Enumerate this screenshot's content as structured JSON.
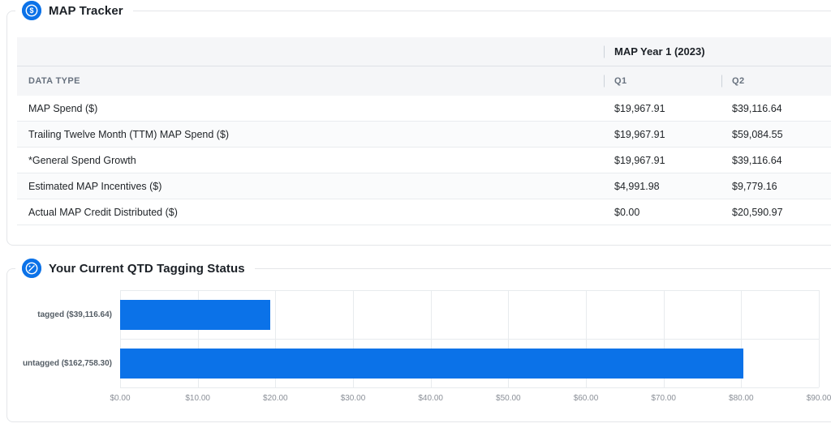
{
  "map_tracker": {
    "title": "MAP Tracker",
    "table": {
      "year_header": "MAP Year 1 (2023)",
      "data_type_header": "DATA TYPE",
      "quarter_headers": {
        "q1": "Q1",
        "q2": "Q2"
      },
      "rows": [
        {
          "label": "MAP Spend ($)",
          "q1": "$19,967.91",
          "q2": "$39,116.64"
        },
        {
          "label": "Trailing Twelve Month (TTM) MAP Spend ($)",
          "q1": "$19,967.91",
          "q2": "$59,084.55"
        },
        {
          "label": "*General Spend Growth",
          "q1": "$19,967.91",
          "q2": "$39,116.64"
        },
        {
          "label": "Estimated MAP Incentives ($)",
          "q1": "$4,991.98",
          "q2": "$9,779.16"
        },
        {
          "label": "Actual MAP Credit Distributed ($)",
          "q1": "$0.00",
          "q2": "$20,590.97"
        }
      ]
    }
  },
  "tagging_status": {
    "title": "Your Current QTD Tagging Status"
  },
  "chart_data": {
    "type": "bar",
    "orientation": "horizontal",
    "title": "Your Current QTD Tagging Status",
    "categories": [
      "tagged ($39,116.64)",
      "untagged ($162,758.30)"
    ],
    "values": [
      19.3,
      80.3
    ],
    "amounts_shown_in_labels": [
      39116.64,
      162758.3
    ],
    "xlim": [
      0,
      90
    ],
    "x_ticks": [
      "$0.00",
      "$10.00",
      "$20.00",
      "$30.00",
      "$40.00",
      "$50.00",
      "$60.00",
      "$70.00",
      "$80.00",
      "$90.00"
    ],
    "grid": true,
    "bar_color": "#0b72e8"
  },
  "colors": {
    "accent_blue": "#0b72e8",
    "card_border": "#e4e6e9",
    "table_header_bg": "#f5f6f8",
    "gridline": "#e8ebee"
  }
}
